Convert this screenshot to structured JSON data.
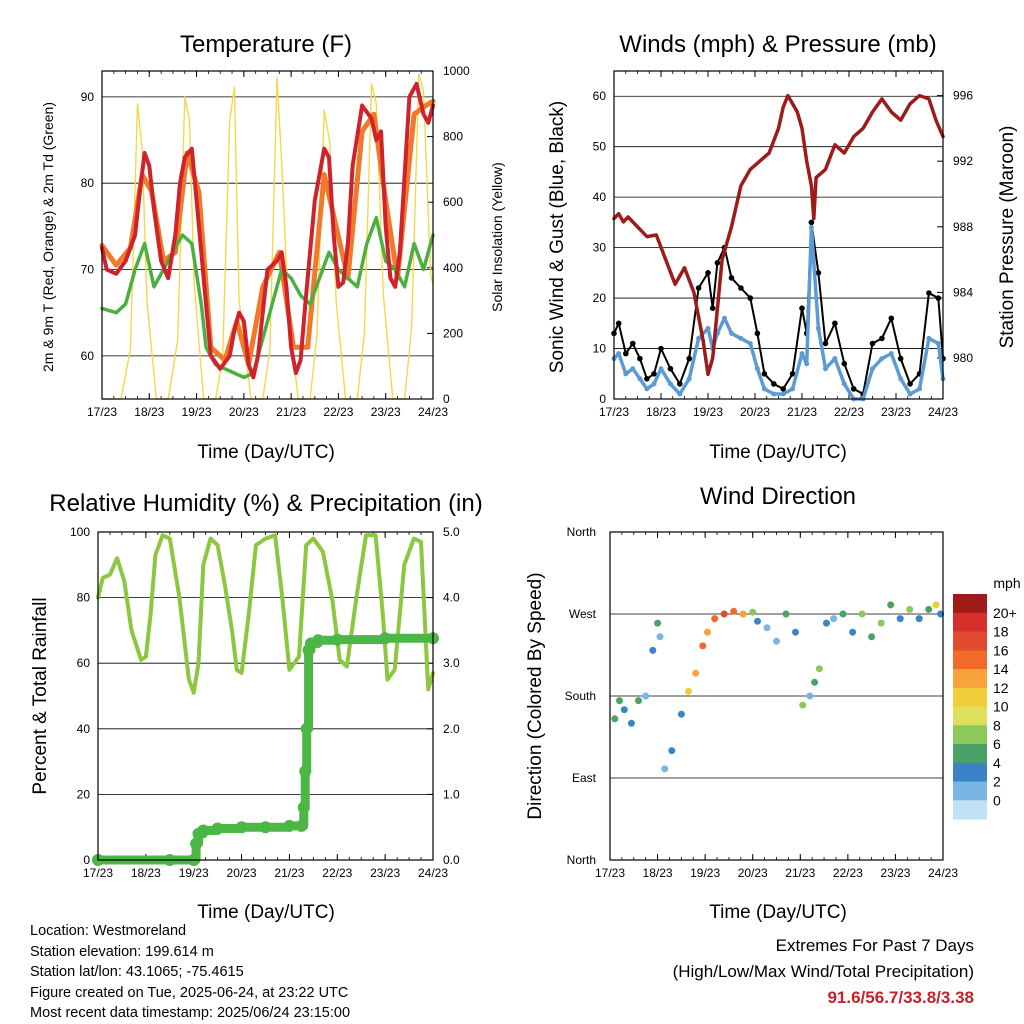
{
  "time_ticks": [
    "17/23",
    "18/23",
    "19/23",
    "20/23",
    "21/23",
    "22/23",
    "23/23",
    "24/23"
  ],
  "colors": {
    "temp2m": "#d0222a",
    "temp9m": "#f07a2a",
    "dewpoint": "#4caf3f",
    "solar": "#f5d84a",
    "gust": "#000000",
    "wind": "#5b9bd5",
    "pressure": "#9e1b1b",
    "rh": "#8dc63f",
    "precip": "#4cb745",
    "grid": "#000000"
  },
  "speed_scale": {
    "label": "mph",
    "levels": [
      "20+",
      "18",
      "16",
      "14",
      "12",
      "10",
      "8",
      "6",
      "4",
      "2",
      "0"
    ],
    "colors": [
      "#a11a1a",
      "#d7302c",
      "#e04a2e",
      "#f06a2a",
      "#f7a23a",
      "#f2cd3a",
      "#dde05a",
      "#8dc85a",
      "#4aa266",
      "#3a84c5",
      "#7ab6e3",
      "#bfe2f6"
    ]
  },
  "chart_data": [
    {
      "type": "line",
      "title": "Temperature (F)",
      "xlabel": "Time (Day/UTC)",
      "ylabel": "2m & 9m T (Red, Orange) & 2m Td (Green)",
      "y2label": "Solar Insolation (Yellow)",
      "ylim": [
        55,
        93
      ],
      "y2lim": [
        0,
        1000
      ],
      "yticks": [
        60,
        70,
        80,
        90
      ],
      "y2ticks": [
        0,
        200,
        400,
        600,
        800,
        1000
      ],
      "xlim": [
        0,
        7
      ],
      "series": [
        {
          "name": "2m T",
          "x": [
            0,
            0.1,
            0.3,
            0.5,
            0.7,
            0.8,
            0.9,
            1.0,
            1.1,
            1.25,
            1.4,
            1.55,
            1.65,
            1.75,
            1.9,
            2.0,
            2.1,
            2.2,
            2.3,
            2.5,
            2.7,
            2.8,
            2.9,
            3.0,
            3.1,
            3.2,
            3.3,
            3.5,
            3.7,
            3.8,
            3.9,
            4.0,
            4.1,
            4.2,
            4.3,
            4.5,
            4.7,
            4.8,
            4.9,
            5.0,
            5.1,
            5.2,
            5.3,
            5.5,
            5.7,
            5.8,
            5.9,
            6.0,
            6.1,
            6.2,
            6.3,
            6.5,
            6.65,
            6.8,
            6.9,
            7.0
          ],
          "y": [
            72.5,
            70,
            69.5,
            71,
            74,
            79,
            83.5,
            82,
            77,
            71,
            69,
            74,
            80,
            83,
            84,
            78,
            72,
            66,
            60,
            58.5,
            60,
            63,
            65,
            64,
            59,
            57.5,
            60,
            70,
            71,
            72,
            68,
            61,
            58,
            59.5,
            66,
            78,
            84,
            83,
            74,
            68,
            68.5,
            73,
            82,
            89,
            87.5,
            85,
            86,
            75,
            69,
            68,
            72,
            90,
            91.5,
            88,
            87,
            89
          ]
        },
        {
          "name": "9m T",
          "x": [
            0,
            0.3,
            0.6,
            0.85,
            1.05,
            1.3,
            1.55,
            1.8,
            2.05,
            2.3,
            2.6,
            2.85,
            3.1,
            3.4,
            3.75,
            4.05,
            4.35,
            4.7,
            4.95,
            5.2,
            5.5,
            5.75,
            6.0,
            6.25,
            6.6,
            6.85,
            7.0
          ],
          "y": [
            72.8,
            70.5,
            72.5,
            81,
            79,
            71,
            72,
            83.5,
            79,
            61,
            59.5,
            64,
            59,
            68,
            72,
            61,
            61,
            81,
            75,
            69,
            86,
            88,
            78,
            69,
            88,
            89,
            89.5
          ]
        },
        {
          "name": "2m Td",
          "x": [
            0,
            0.3,
            0.5,
            0.7,
            0.9,
            1.1,
            1.3,
            1.5,
            1.7,
            1.9,
            2.1,
            2.2,
            2.4,
            2.6,
            2.8,
            3.0,
            3.2,
            3.4,
            3.6,
            3.8,
            4.0,
            4.2,
            4.4,
            4.6,
            4.8,
            5.0,
            5.2,
            5.4,
            5.6,
            5.8,
            6.0,
            6.2,
            6.4,
            6.6,
            6.8,
            7.0
          ],
          "y": [
            65.5,
            65,
            66,
            70,
            73,
            68,
            70,
            72,
            74,
            73,
            66,
            61,
            59,
            58.5,
            58,
            57.5,
            58,
            62,
            66,
            70,
            69,
            67,
            66,
            69,
            72,
            70,
            69,
            68,
            73,
            76,
            71,
            70,
            68,
            73,
            70,
            74
          ]
        },
        {
          "name": "Solar Insolation",
          "x": [
            0,
            0.2,
            0.4,
            0.6,
            0.75,
            0.85,
            0.95,
            1.15,
            1.4,
            1.6,
            1.75,
            1.85,
            1.95,
            2.15,
            2.4,
            2.55,
            2.7,
            2.8,
            2.9,
            3.15,
            3.4,
            3.55,
            3.7,
            3.8,
            3.95,
            4.15,
            4.4,
            4.55,
            4.7,
            4.82,
            4.95,
            5.15,
            5.4,
            5.55,
            5.7,
            5.8,
            5.95,
            6.15,
            6.4,
            6.55,
            6.7,
            6.8,
            6.95,
            7.0
          ],
          "y": [
            0,
            0,
            0,
            150,
            900,
            760,
            300,
            0,
            0,
            180,
            920,
            850,
            350,
            0,
            0,
            120,
            850,
            950,
            300,
            0,
            0,
            150,
            980,
            720,
            250,
            0,
            0,
            200,
            880,
            780,
            300,
            0,
            0,
            200,
            960,
            900,
            320,
            0,
            0,
            220,
            990,
            940,
            380,
            350
          ]
        }
      ]
    },
    {
      "type": "scatter",
      "title": "Winds (mph) & Pressure (mb)",
      "xlabel": "Time (Day/UTC)",
      "ylabel": "Sonic Wind & Gust (Blue, Black)",
      "y2label": "Station Pressure (Maroon)",
      "ylim": [
        0,
        65
      ],
      "y2lim": [
        977.5,
        997.5
      ],
      "yticks": [
        0,
        10,
        20,
        30,
        40,
        50,
        60
      ],
      "y2ticks": [
        980,
        984,
        988,
        992,
        996
      ],
      "xlim": [
        0,
        7
      ],
      "series": [
        {
          "name": "Gust",
          "x": [
            0,
            0.1,
            0.25,
            0.4,
            0.55,
            0.7,
            0.85,
            1.0,
            1.2,
            1.4,
            1.6,
            1.8,
            2.0,
            2.1,
            2.2,
            2.35,
            2.5,
            2.7,
            2.9,
            3.05,
            3.2,
            3.4,
            3.6,
            3.8,
            4.0,
            4.1,
            4.2,
            4.35,
            4.5,
            4.7,
            4.9,
            5.1,
            5.3,
            5.5,
            5.7,
            5.9,
            6.1,
            6.3,
            6.5,
            6.7,
            6.9,
            7.0
          ],
          "y": [
            13,
            15,
            9,
            11,
            8,
            4,
            5,
            10,
            6,
            3,
            8,
            22,
            25,
            18,
            27,
            30,
            24,
            22,
            20,
            13,
            5,
            3,
            2,
            5,
            18,
            13,
            35,
            25,
            11,
            15,
            7,
            2,
            1,
            11,
            12,
            16,
            8,
            3,
            5,
            21,
            20,
            8
          ]
        },
        {
          "name": "Wind",
          "x": [
            0,
            0.1,
            0.25,
            0.4,
            0.55,
            0.7,
            0.85,
            1.0,
            1.2,
            1.4,
            1.6,
            1.8,
            2.0,
            2.1,
            2.2,
            2.35,
            2.5,
            2.7,
            2.9,
            3.05,
            3.2,
            3.4,
            3.6,
            3.8,
            4.0,
            4.1,
            4.2,
            4.35,
            4.5,
            4.7,
            4.9,
            5.1,
            5.3,
            5.5,
            5.7,
            5.9,
            6.1,
            6.3,
            6.5,
            6.7,
            6.9,
            7.0
          ],
          "y": [
            8,
            9,
            5,
            6,
            4,
            2,
            3,
            6,
            3,
            1,
            4,
            12,
            14,
            10,
            13,
            16,
            13,
            12,
            11,
            6,
            2,
            1,
            1,
            2,
            9,
            7,
            34,
            14,
            6,
            8,
            3,
            0,
            0,
            6,
            8,
            9,
            4,
            1,
            2,
            12,
            11,
            4
          ]
        },
        {
          "name": "Station Pressure",
          "x": [
            0,
            0.1,
            0.2,
            0.3,
            0.5,
            0.7,
            0.9,
            1.1,
            1.3,
            1.5,
            1.7,
            1.9,
            2.0,
            2.1,
            2.2,
            2.3,
            2.5,
            2.7,
            2.9,
            3.1,
            3.3,
            3.5,
            3.6,
            3.7,
            3.9,
            4.0,
            4.1,
            4.2,
            4.25,
            4.3,
            4.5,
            4.7,
            4.9,
            5.1,
            5.3,
            5.5,
            5.7,
            5.9,
            6.1,
            6.3,
            6.5,
            6.7,
            6.85,
            7.0
          ],
          "y": [
            988.5,
            988.8,
            988.3,
            988.6,
            988,
            987.4,
            987.5,
            986,
            984.5,
            985.5,
            984,
            981,
            979,
            980,
            983,
            986,
            988,
            990.5,
            991.5,
            992,
            992.5,
            994,
            995.3,
            996,
            995,
            994,
            992,
            990.5,
            988.5,
            991,
            991.5,
            993,
            992.5,
            993.5,
            994,
            995,
            995.8,
            995,
            994.5,
            995.5,
            996,
            995.8,
            994.5,
            993.5
          ]
        }
      ]
    },
    {
      "type": "line",
      "title": "Relative Humidity (%) & Precipitation (in)",
      "xlabel": "Time (Day/UTC)",
      "ylabel": "Percent & Total Rainfall",
      "ylim": [
        0,
        100
      ],
      "y2lim": [
        0,
        5
      ],
      "yticks": [
        0,
        20,
        40,
        60,
        80,
        100
      ],
      "y2ticks": [
        "0.0",
        "1.0",
        "2.0",
        "3.0",
        "4.0",
        "5.0"
      ],
      "xlim": [
        0,
        7
      ],
      "series": [
        {
          "name": "RH",
          "x": [
            0,
            0.1,
            0.25,
            0.4,
            0.55,
            0.7,
            0.9,
            1.0,
            1.1,
            1.2,
            1.35,
            1.5,
            1.7,
            1.9,
            2.0,
            2.1,
            2.2,
            2.35,
            2.5,
            2.65,
            2.8,
            2.9,
            3.0,
            3.15,
            3.3,
            3.5,
            3.7,
            3.85,
            4.0,
            4.2,
            4.35,
            4.5,
            4.7,
            4.9,
            5.05,
            5.2,
            5.4,
            5.6,
            5.8,
            5.95,
            6.05,
            6.2,
            6.4,
            6.6,
            6.75,
            6.9,
            7.0
          ],
          "y": [
            80,
            86,
            87,
            92,
            85,
            70,
            61,
            62,
            75,
            93,
            99,
            98,
            80,
            55,
            51,
            60,
            90,
            98,
            96,
            84,
            70,
            58,
            57,
            75,
            96,
            98,
            99,
            80,
            58,
            62,
            96,
            98,
            94,
            79,
            61,
            59,
            80,
            99,
            99,
            75,
            55,
            58,
            90,
            98,
            97,
            52,
            57
          ]
        },
        {
          "name": "Precipitation",
          "x": [
            0,
            1.5,
            2.0,
            2.05,
            2.1,
            2.2,
            2.5,
            3.0,
            3.5,
            4.0,
            4.25,
            4.3,
            4.33,
            4.36,
            4.4,
            4.45,
            4.6,
            5.0,
            6.0,
            7.0
          ],
          "y": [
            0,
            0,
            0,
            0.25,
            0.4,
            0.45,
            0.48,
            0.5,
            0.5,
            0.52,
            0.52,
            0.8,
            1.35,
            2.0,
            3.2,
            3.3,
            3.35,
            3.36,
            3.38,
            3.38
          ]
        }
      ]
    },
    {
      "type": "scatter",
      "title": "Wind Direction",
      "xlabel": "Time (Day/UTC)",
      "ylabel": "Direction (Colored By Speed)",
      "yticks": [
        "North",
        "East",
        "South",
        "West",
        "North"
      ],
      "ylim": [
        0,
        360
      ],
      "xlim": [
        0,
        7
      ],
      "series": [
        {
          "name": "Direction",
          "x": [
            0.1,
            0.2,
            0.3,
            0.45,
            0.6,
            0.75,
            0.9,
            1.0,
            1.05,
            1.15,
            1.3,
            1.5,
            1.65,
            1.8,
            1.95,
            2.05,
            2.2,
            2.4,
            2.6,
            2.8,
            3.0,
            3.1,
            3.3,
            3.5,
            3.7,
            3.9,
            4.05,
            4.2,
            4.3,
            4.4,
            4.55,
            4.7,
            4.9,
            5.1,
            5.3,
            5.5,
            5.7,
            5.9,
            6.1,
            6.3,
            6.5,
            6.7,
            6.85,
            6.95
          ],
          "y": [
            155,
            175,
            165,
            150,
            175,
            180,
            230,
            260,
            245,
            100,
            120,
            160,
            185,
            205,
            235,
            250,
            265,
            270,
            273,
            270,
            272,
            262,
            255,
            240,
            270,
            250,
            170,
            180,
            195,
            210,
            260,
            265,
            270,
            250,
            270,
            245,
            260,
            280,
            265,
            275,
            265,
            275,
            280,
            270
          ],
          "speed": [
            6,
            6,
            4,
            4,
            6,
            2,
            4,
            6,
            2,
            2,
            4,
            4,
            12,
            14,
            16,
            14,
            16,
            18,
            16,
            14,
            8,
            4,
            2,
            2,
            6,
            4,
            8,
            2,
            6,
            8,
            4,
            2,
            6,
            4,
            8,
            6,
            8,
            6,
            4,
            8,
            4,
            6,
            12,
            4
          ]
        }
      ]
    }
  ],
  "info": {
    "location": "Location: Westmoreland",
    "elevation": "Station elevation: 199.614 m",
    "latlon": "Station lat/lon: 43.1065; -75.4615",
    "created": "Figure created on Tue, 2025-06-24, at 23:22 UTC",
    "recent": "Most recent data timestamp: 2025/06/24 23:15:00"
  },
  "extremes": {
    "title": "Extremes For Past 7 Days",
    "subtitle": "(High/Low/Max Wind/Total Precipitation)",
    "values": "91.6/56.7/33.8/3.38"
  }
}
